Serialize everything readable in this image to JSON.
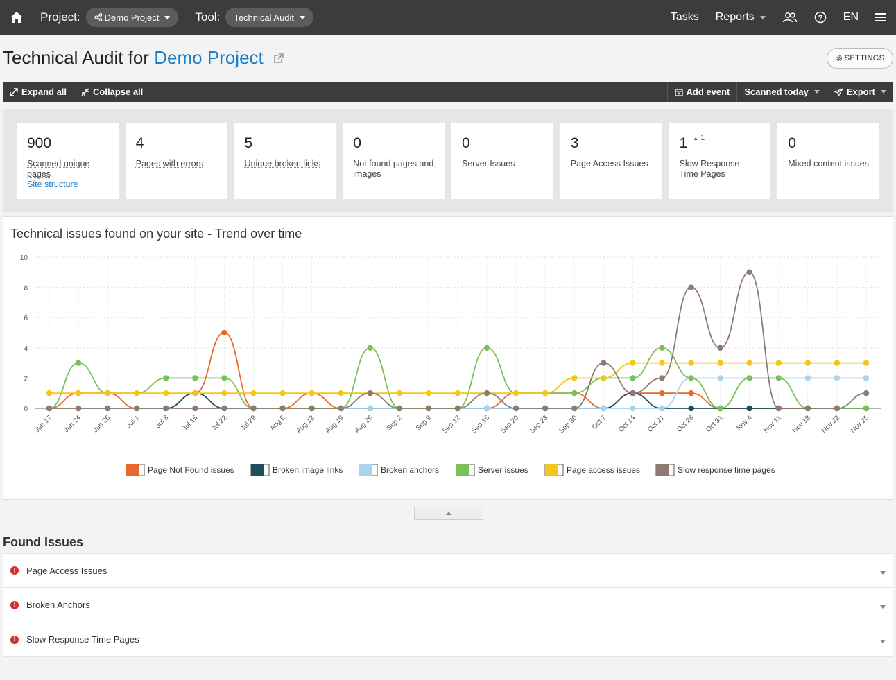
{
  "topbar": {
    "project_label": "Project:",
    "project_value": "Demo Project",
    "tool_label": "Tool:",
    "tool_value": "Technical Audit",
    "tasks": "Tasks",
    "reports": "Reports",
    "lang": "EN"
  },
  "title": {
    "prefix": "Technical Audit for",
    "project": "Demo Project",
    "settings": "SETTINGS"
  },
  "actionbar": {
    "expand": "Expand all",
    "collapse": "Collapse all",
    "add_event": "Add event",
    "scanned": "Scanned today",
    "export": "Export"
  },
  "stats": [
    {
      "value": "900",
      "label": "Scanned unique pages",
      "link": "Site structure",
      "delta": ""
    },
    {
      "value": "4",
      "label": "Pages with errors",
      "link": "",
      "delta": ""
    },
    {
      "value": "5",
      "label": "Unique broken links",
      "link": "",
      "delta": ""
    },
    {
      "value": "0",
      "label": "Not found pages and images",
      "link": "",
      "delta": ""
    },
    {
      "value": "0",
      "label": "Server Issues",
      "link": "",
      "delta": ""
    },
    {
      "value": "3",
      "label": "Page Access Issues",
      "link": "",
      "delta": ""
    },
    {
      "value": "1",
      "label": "Slow Response Time Pages",
      "link": "",
      "delta": "1"
    },
    {
      "value": "0",
      "label": "Mixed content issues",
      "link": "",
      "delta": ""
    }
  ],
  "found_issues_title": "Found Issues",
  "issues": [
    "Page Access Issues",
    "Broken Anchors",
    "Slow Response Time Pages"
  ],
  "chart_data": {
    "type": "line",
    "title": "Technical issues found on your site - Trend over time",
    "ylim": [
      0,
      10
    ],
    "yticks": [
      0,
      2,
      4,
      6,
      8,
      10
    ],
    "grid": true,
    "legend_position": "bottom",
    "categories": [
      "Jun 17",
      "Jun 24",
      "Jun 25",
      "Jul 1",
      "Jul 8",
      "Jul 15",
      "Jul 22",
      "Jul 29",
      "Aug 5",
      "Aug 12",
      "Aug 19",
      "Aug 26",
      "Sep 2",
      "Sep 9",
      "Sep 12",
      "Sep 16",
      "Sep 20",
      "Sep 23",
      "Sep 30",
      "Oct 7",
      "Oct 14",
      "Oct 21",
      "Oct 28",
      "Oct 31",
      "Nov 4",
      "Nov 11",
      "Nov 18",
      "Nov 22",
      "Nov 25"
    ],
    "series": [
      {
        "name": "Page Not Found issues",
        "color": "#e8682a",
        "values": [
          0,
          1,
          1,
          0,
          0,
          1,
          5,
          0,
          0,
          1,
          0,
          0,
          0,
          0,
          0,
          0,
          1,
          1,
          1,
          0,
          1,
          1,
          1,
          0,
          0,
          0,
          0,
          0,
          0
        ]
      },
      {
        "name": "Broken image links",
        "color": "#1f4e5f",
        "values": [
          0,
          0,
          0,
          0,
          0,
          1,
          0,
          0,
          0,
          0,
          0,
          0,
          0,
          0,
          0,
          0,
          0,
          0,
          0,
          0,
          1,
          0,
          0,
          0,
          0,
          0,
          0,
          0,
          0
        ]
      },
      {
        "name": "Broken anchors",
        "color": "#a8d4ec",
        "values": [
          0,
          0,
          0,
          0,
          0,
          0,
          0,
          0,
          0,
          0,
          0,
          0,
          0,
          0,
          0,
          0,
          0,
          0,
          0,
          0,
          0,
          0,
          2,
          2,
          2,
          2,
          2,
          2,
          2
        ]
      },
      {
        "name": "Server issues",
        "color": "#7bc05a",
        "values": [
          0,
          3,
          1,
          1,
          2,
          2,
          2,
          0,
          0,
          0,
          0,
          4,
          0,
          0,
          0,
          4,
          1,
          1,
          1,
          2,
          2,
          4,
          2,
          0,
          2,
          2,
          0,
          0,
          0
        ]
      },
      {
        "name": "Page access issues",
        "color": "#f5c518",
        "values": [
          1,
          1,
          1,
          1,
          1,
          1,
          1,
          1,
          1,
          1,
          1,
          1,
          1,
          1,
          1,
          1,
          1,
          1,
          2,
          2,
          3,
          3,
          3,
          3,
          3,
          3,
          3,
          3,
          3
        ]
      },
      {
        "name": "Slow response time pages",
        "color": "#8d7b73",
        "values": [
          0,
          0,
          0,
          0,
          0,
          0,
          0,
          0,
          0,
          0,
          0,
          1,
          0,
          0,
          0,
          1,
          0,
          0,
          0,
          3,
          1,
          2,
          8,
          4,
          9,
          0,
          0,
          0,
          1
        ]
      }
    ]
  }
}
